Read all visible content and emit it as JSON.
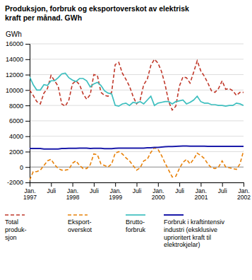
{
  "chart_data": {
    "type": "line",
    "title": "Produksjon, forbruk og eksportoverskot av elektrisk\nkraft per månad. GWh",
    "y_label": "GWh",
    "ylim": [
      -2000,
      16000
    ],
    "yticks": [
      -2000,
      0,
      2000,
      4000,
      6000,
      8000,
      10000,
      12000,
      14000,
      16000
    ],
    "grid": true,
    "legend": "bottom",
    "categories": [
      "Jan.\n1997",
      null,
      null,
      null,
      null,
      null,
      "Juli",
      null,
      null,
      null,
      null,
      null,
      "Jan.\n1998",
      null,
      null,
      null,
      null,
      null,
      "Juli",
      null,
      null,
      null,
      null,
      null,
      "Jan.\n1999",
      null,
      null,
      null,
      null,
      null,
      "Juli",
      null,
      null,
      null,
      null,
      null,
      "Jan.\n2000",
      null,
      null,
      null,
      null,
      null,
      "Juli",
      null,
      null,
      null,
      null,
      null,
      "Jan.\n2001",
      null,
      null,
      null,
      null,
      null,
      "Juli",
      null,
      null,
      null,
      null,
      null,
      "Jan.\n2002"
    ],
    "series": [
      {
        "name": "Total\nproduk-\nsjon",
        "color": "#c0392b",
        "line_style": "dashed",
        "values": [
          10000,
          9300,
          8500,
          8200,
          9600,
          10200,
          11900,
          11200,
          10500,
          8200,
          7900,
          8700,
          10800,
          11200,
          10700,
          9500,
          8800,
          9400,
          12000,
          11900,
          9700,
          9300,
          9200,
          9700,
          13300,
          13600,
          12200,
          11400,
          10500,
          9200,
          8200,
          8700,
          10700,
          11400,
          13200,
          14000,
          13500,
          12400,
          10700,
          8500,
          7400,
          7900,
          10500,
          11700,
          11600,
          10900,
          12300,
          13800,
          12500,
          11800,
          10900,
          9900,
          9700,
          10200,
          11200,
          10100,
          10200,
          9900,
          9300,
          9700,
          9700
        ]
      },
      {
        "name": "Eksport-\noverskot",
        "color": "#e8820a",
        "line_style": "dashed",
        "values": [
          -1700,
          -600,
          -600,
          -400,
          200,
          800,
          1000,
          300,
          -200,
          -400,
          -400,
          -300,
          500,
          800,
          200,
          -200,
          -200,
          300,
          1700,
          1600,
          400,
          200,
          0,
          400,
          1800,
          2000,
          1700,
          1200,
          800,
          200,
          -400,
          -100,
          800,
          1000,
          1900,
          2500,
          2300,
          1500,
          500,
          -400,
          -1300,
          -1200,
          -200,
          600,
          1000,
          400,
          1000,
          1800,
          1500,
          1100,
          400,
          -100,
          -200,
          0,
          800,
          0,
          -100,
          -200,
          -300,
          400,
          2100
        ]
      },
      {
        "name": "Brutto-\nforbruk",
        "color": "#3dbfbf",
        "line_style": "solid",
        "values": [
          11700,
          10700,
          10000,
          10000,
          10700,
          10600,
          11200,
          11200,
          11600,
          12100,
          12200,
          11600,
          11300,
          11100,
          11500,
          11500,
          11200,
          10400,
          10800,
          11000,
          10600,
          9900,
          9600,
          9500,
          8000,
          7900,
          8200,
          8300,
          8000,
          8400,
          8300,
          8500,
          8200,
          8700,
          9200,
          8000,
          8300,
          8400,
          8500,
          8500,
          8200,
          8500,
          8600,
          8700,
          8200,
          8400,
          8700,
          9200,
          8500,
          8300,
          8300,
          8100,
          8100,
          8000,
          8000,
          7900,
          8000,
          8000,
          8300,
          8200,
          8000
        ]
      },
      {
        "name": "Forbruk i kraftintensiv\nindustri (eksklusive\nuprioritert kraft til\nelektrokjelar)",
        "color": "#1a1aaa",
        "line_style": "solid",
        "values": [
          2400,
          2400,
          2400,
          2400,
          2350,
          2350,
          2350,
          2350,
          2350,
          2400,
          2400,
          2420,
          2420,
          2420,
          2450,
          2450,
          2450,
          2400,
          2420,
          2420,
          2420,
          2380,
          2380,
          2380,
          2430,
          2450,
          2450,
          2450,
          2450,
          2450,
          2450,
          2450,
          2450,
          2500,
          2500,
          2550,
          2550,
          2600,
          2630,
          2650,
          2650,
          2680,
          2700,
          2720,
          2720,
          2700,
          2700,
          2700,
          2700,
          2700,
          2680,
          2680,
          2680,
          2680,
          2680,
          2680,
          2680,
          2680,
          2680,
          2680,
          2680
        ]
      }
    ]
  }
}
